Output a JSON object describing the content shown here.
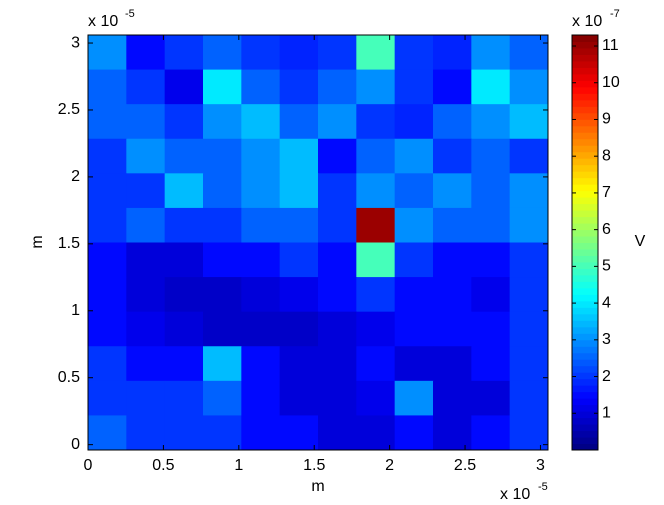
{
  "chart_data": {
    "type": "heatmap",
    "xlabel": "m",
    "ylabel": "m",
    "colorbar_label": "V",
    "x_multiplier": {
      "base": "x 10",
      "exponent": "-5"
    },
    "y_multiplier": {
      "base": "x 10",
      "exponent": "-5"
    },
    "colorbar_multiplier": {
      "base": "x 10",
      "exponent": "-7"
    },
    "xlim": [
      0,
      3.05
    ],
    "ylim": [
      -0.04,
      3.06
    ],
    "xticks": [
      0,
      0.5,
      1,
      1.5,
      2,
      2.5,
      3
    ],
    "yticks": [
      0,
      0.5,
      1,
      1.5,
      2,
      2.5,
      3
    ],
    "clim": [
      0,
      11.3
    ],
    "cticks": [
      1,
      2,
      3,
      4,
      5,
      6,
      7,
      8,
      9,
      10,
      11
    ],
    "colormap": "jet",
    "z": [
      [
        3,
        1.5,
        2,
        2.5,
        2,
        1.8,
        2,
        5,
        2,
        1.8,
        3,
        2.5
      ],
      [
        2.5,
        2,
        1.2,
        4,
        2.5,
        2,
        2.5,
        3,
        2,
        1.5,
        4,
        3
      ],
      [
        2.5,
        2.5,
        2,
        3,
        3.5,
        2.5,
        3,
        2,
        1.8,
        2.5,
        3,
        3.5
      ],
      [
        2,
        3,
        2.5,
        2.5,
        3,
        3.5,
        1.5,
        2.5,
        3,
        2,
        2.5,
        2
      ],
      [
        2,
        2,
        3.5,
        2.5,
        3,
        3.5,
        2,
        3,
        2.5,
        3,
        2.5,
        3
      ],
      [
        2,
        2.5,
        2,
        2,
        2.5,
        2.5,
        2,
        11,
        3,
        2.5,
        2.5,
        3
      ],
      [
        1.5,
        1,
        1,
        1.5,
        1.5,
        2,
        1.5,
        5,
        2,
        1.5,
        1.5,
        2
      ],
      [
        1.5,
        1,
        0.8,
        0.8,
        1,
        1.2,
        1.5,
        2,
        1.5,
        1.5,
        1.2,
        2
      ],
      [
        1.5,
        1.2,
        1,
        0.8,
        0.8,
        0.8,
        1,
        1.2,
        1.5,
        1.5,
        1.5,
        2
      ],
      [
        2,
        1.5,
        1.5,
        3.5,
        1.5,
        1,
        1,
        1.5,
        1,
        1,
        1.5,
        2
      ],
      [
        2,
        2,
        2,
        2.5,
        1.5,
        1,
        1,
        1.2,
        3,
        1,
        1,
        2
      ],
      [
        2.5,
        2,
        2,
        2,
        1.5,
        1.5,
        1,
        1,
        1.5,
        1,
        1.5,
        2
      ]
    ]
  }
}
